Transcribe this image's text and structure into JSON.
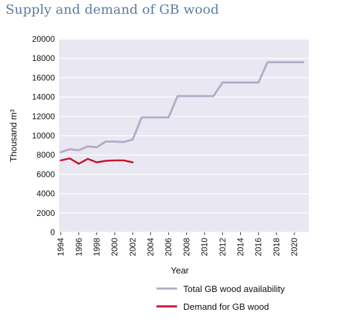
{
  "chart_data": {
    "type": "line",
    "title": "Supply and demand of GB wood",
    "xlabel": "Year",
    "ylabel": "Thousand m³",
    "xlim": [
      1994,
      2021
    ],
    "ylim": [
      0,
      20000
    ],
    "x_ticks": [
      "1994",
      "1996",
      "1998",
      "2000",
      "2002",
      "2004",
      "2006",
      "2008",
      "2010",
      "2012",
      "2014",
      "2016",
      "2018",
      "2020"
    ],
    "y_ticks": [
      "0",
      "2000",
      "4000",
      "6000",
      "8000",
      "10000",
      "12000",
      "14000",
      "16000",
      "18000",
      "20000"
    ],
    "grid": "horizontal",
    "legend_position": "bottom-right",
    "series": [
      {
        "name": "Total GB wood availability",
        "color": "#b4aac8",
        "x": [
          1994,
          1995,
          1996,
          1997,
          1998,
          1999,
          2000,
          2001,
          2002,
          2003,
          2004,
          2005,
          2006,
          2007,
          2008,
          2009,
          2010,
          2011,
          2012,
          2013,
          2014,
          2015,
          2016,
          2017,
          2018,
          2019,
          2020,
          2021
        ],
        "values": [
          8300,
          8600,
          8500,
          8900,
          8800,
          9400,
          9400,
          9350,
          9600,
          11900,
          11900,
          11900,
          11900,
          14100,
          14100,
          14100,
          14100,
          14100,
          15500,
          15500,
          15500,
          15500,
          15500,
          17600,
          17600,
          17600,
          17600,
          17600
        ]
      },
      {
        "name": "Demand for GB wood",
        "color": "#c8102e",
        "x": [
          1994,
          1995,
          1996,
          1997,
          1998,
          1999,
          2000,
          2001,
          2002
        ],
        "values": [
          7450,
          7650,
          7100,
          7600,
          7250,
          7400,
          7450,
          7450,
          7250
        ]
      }
    ]
  }
}
